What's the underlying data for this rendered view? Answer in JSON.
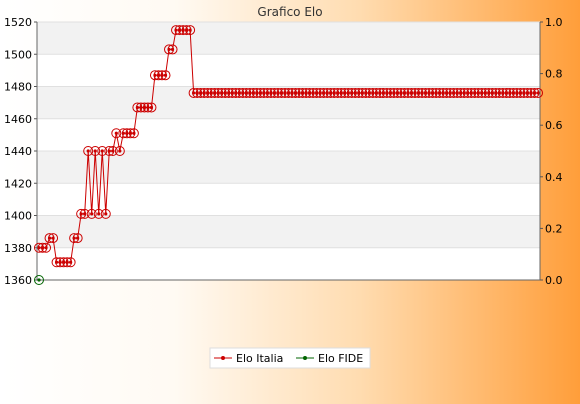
{
  "chart_data": {
    "type": "line",
    "title": "Grafico Elo",
    "xlabel": "",
    "ylabel": "",
    "ylim": [
      1360,
      1520
    ],
    "yticks": [
      1360,
      1380,
      1400,
      1420,
      1440,
      1460,
      1480,
      1500,
      1520
    ],
    "y2lim": [
      0.0,
      1.0
    ],
    "y2ticks": [
      "0.0",
      "0.2",
      "0.4",
      "0.6",
      "0.8",
      "1.0"
    ],
    "grid": true,
    "legend_position": "bottom-center",
    "colors": {
      "elo_italia": "#cc0000",
      "elo_fide": "#006400"
    },
    "series": [
      {
        "name": "Elo Italia",
        "values": [
          1380,
          1380,
          1380,
          1386,
          1386,
          1371,
          1371,
          1371,
          1371,
          1371,
          1386,
          1386,
          1401,
          1401,
          1440,
          1401,
          1440,
          1401,
          1440,
          1401,
          1440,
          1440,
          1451,
          1440,
          1451,
          1451,
          1451,
          1451,
          1467,
          1467,
          1467,
          1467,
          1467,
          1487,
          1487,
          1487,
          1487,
          1503,
          1503,
          1515,
          1515,
          1515,
          1515,
          1515,
          1476,
          1476,
          1476,
          1476,
          1476,
          1476,
          1476,
          1476,
          1476,
          1476,
          1476,
          1476,
          1476,
          1476,
          1476,
          1476,
          1476,
          1476,
          1476,
          1476,
          1476,
          1476,
          1476,
          1476,
          1476,
          1476,
          1476,
          1476,
          1476,
          1476,
          1476,
          1476,
          1476,
          1476,
          1476,
          1476,
          1476,
          1476,
          1476,
          1476,
          1476,
          1476,
          1476,
          1476,
          1476,
          1476,
          1476,
          1476,
          1476,
          1476,
          1476,
          1476,
          1476,
          1476,
          1476,
          1476,
          1476,
          1476,
          1476,
          1476,
          1476,
          1476,
          1476,
          1476,
          1476,
          1476,
          1476,
          1476,
          1476,
          1476,
          1476,
          1476,
          1476,
          1476,
          1476,
          1476,
          1476,
          1476,
          1476,
          1476,
          1476,
          1476,
          1476,
          1476,
          1476,
          1476,
          1476,
          1476,
          1476,
          1476,
          1476,
          1476,
          1476,
          1476,
          1476,
          1476,
          1476,
          1476,
          1476
        ]
      },
      {
        "name": "Elo FIDE",
        "values": [
          1360
        ]
      }
    ]
  }
}
